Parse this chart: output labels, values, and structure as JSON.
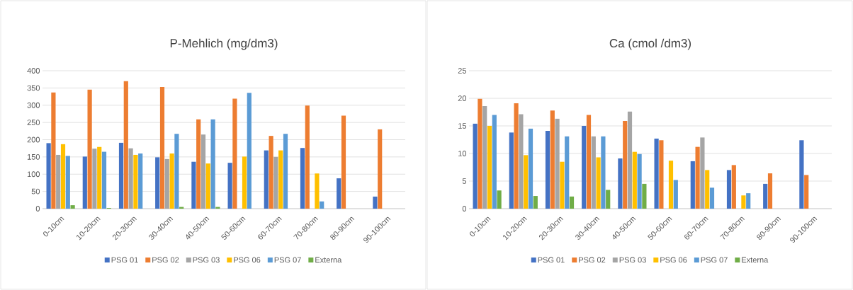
{
  "chart_data": [
    {
      "type": "bar",
      "title": "P-Mehlich (mg/dm3)",
      "categories": [
        "0-10cm",
        "10-20cm",
        "20-30cm",
        "30-40cm",
        "40-50cm",
        "50-60cm",
        "60-70cm",
        "70-80cm",
        "80-90cm",
        "90-100cm"
      ],
      "series": [
        {
          "name": "PSG 01",
          "color": "#4472c4",
          "values": [
            190,
            151,
            191,
            149,
            136,
            133,
            169,
            176,
            88,
            35
          ]
        },
        {
          "name": "PSG 02",
          "color": "#ed7d31",
          "values": [
            337,
            345,
            370,
            353,
            259,
            319,
            211,
            299,
            270,
            230
          ]
        },
        {
          "name": "PSG 03",
          "color": "#a5a5a5",
          "values": [
            156,
            174,
            175,
            144,
            215,
            null,
            150,
            null,
            null,
            null
          ]
        },
        {
          "name": "PSG 06",
          "color": "#ffc000",
          "values": [
            187,
            179,
            156,
            160,
            131,
            151,
            169,
            102,
            null,
            null
          ]
        },
        {
          "name": "PSG 07",
          "color": "#5b9bd5",
          "values": [
            153,
            165,
            160,
            217,
            259,
            336,
            217,
            21,
            null,
            null
          ]
        },
        {
          "name": "Externa",
          "color": "#70ad47",
          "values": [
            10,
            2,
            null,
            5,
            5,
            null,
            null,
            null,
            null,
            null
          ]
        }
      ],
      "ylim": [
        0,
        400
      ],
      "yticks": [
        0,
        50,
        100,
        150,
        200,
        250,
        300,
        350,
        400
      ],
      "grid": "y",
      "legend": "bottom"
    },
    {
      "type": "bar",
      "title": "Ca (cmol /dm3)",
      "categories": [
        "0-10cm",
        "10-20cm",
        "20-30cm",
        "30-40cm",
        "40-50cm",
        "50-60cm",
        "60-70cm",
        "70-80cm",
        "80-90cm",
        "90-100cm"
      ],
      "series": [
        {
          "name": "PSG 01",
          "color": "#4472c4",
          "values": [
            15.4,
            13.8,
            14.1,
            15.0,
            9.1,
            12.7,
            8.6,
            7.0,
            4.5,
            12.4
          ]
        },
        {
          "name": "PSG 02",
          "color": "#ed7d31",
          "values": [
            19.9,
            19.1,
            17.8,
            17.0,
            15.9,
            12.4,
            11.2,
            7.9,
            6.4,
            6.1
          ]
        },
        {
          "name": "PSG 03",
          "color": "#a5a5a5",
          "values": [
            18.6,
            17.1,
            16.3,
            13.1,
            17.6,
            null,
            12.9,
            null,
            null,
            null
          ]
        },
        {
          "name": "PSG 06",
          "color": "#ffc000",
          "values": [
            15.0,
            9.7,
            8.5,
            9.3,
            10.3,
            8.7,
            7.0,
            2.4,
            null,
            null
          ]
        },
        {
          "name": "PSG 07",
          "color": "#5b9bd5",
          "values": [
            17.0,
            14.5,
            13.1,
            13.1,
            9.9,
            5.2,
            3.8,
            2.8,
            null,
            null
          ]
        },
        {
          "name": "Externa",
          "color": "#70ad47",
          "values": [
            3.3,
            2.3,
            2.2,
            3.4,
            4.5,
            null,
            null,
            null,
            null,
            null
          ]
        }
      ],
      "ylim": [
        0,
        25
      ],
      "yticks": [
        0,
        5,
        10,
        15,
        20,
        25
      ],
      "grid": "y",
      "legend": "bottom"
    }
  ]
}
